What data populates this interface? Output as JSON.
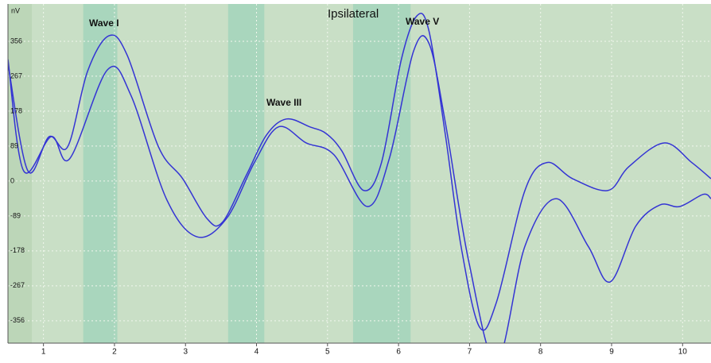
{
  "chart_data": {
    "type": "line",
    "title": "Ipsilateral",
    "y_label": "nV",
    "annotations": [
      "Wave I",
      "Wave III",
      "Wave V"
    ],
    "bands": [
      [
        1.56,
        2.04
      ],
      [
        3.6,
        4.11
      ],
      [
        5.36,
        6.17
      ]
    ],
    "xlim": [
      0.5,
      10.4
    ],
    "xticks": [
      1,
      2,
      3,
      4,
      5,
      6,
      7,
      8,
      9,
      10
    ],
    "ylim": [
      -413,
      451
    ],
    "yticks": [
      356,
      267,
      178,
      89,
      0,
      -89,
      -178,
      -267,
      -356
    ],
    "grid": true,
    "series": [
      {
        "color": "#3434d4",
        "x": [
          0.5,
          0.78,
          1.08,
          1.34,
          1.62,
          1.92,
          2.18,
          2.62,
          2.96,
          3.3,
          3.52,
          3.86,
          4.14,
          4.42,
          4.75,
          4.98,
          5.2,
          5.51,
          5.76,
          6.04,
          6.26,
          6.43,
          6.66,
          6.88,
          7.14,
          7.38,
          7.78,
          8.09,
          8.45,
          8.95,
          9.24,
          9.74,
          10.13,
          10.4
        ],
        "values": [
          300,
          26,
          113,
          87,
          279,
          370,
          320,
          87,
          6,
          -95,
          -105,
          16,
          117,
          158,
          138,
          121,
          77,
          -24,
          47,
          310,
          421,
          381,
          117,
          -166,
          -372,
          -308,
          -24,
          47,
          6,
          -24,
          36,
          97,
          47,
          6
        ]
      },
      {
        "color": "#3434d4",
        "x": [
          0.5,
          0.72,
          1.11,
          1.37,
          1.9,
          2.23,
          2.73,
          3.16,
          3.58,
          3.97,
          4.31,
          4.7,
          5.09,
          5.56,
          5.87,
          6.21,
          6.43,
          6.66,
          6.99,
          7.38,
          7.78,
          8.22,
          8.67,
          8.98,
          9.34,
          9.68,
          9.96,
          10.29,
          10.4
        ],
        "values": [
          310,
          26,
          113,
          57,
          283,
          219,
          -45,
          -142,
          -95,
          47,
          138,
          97,
          67,
          -65,
          57,
          330,
          350,
          148,
          -206,
          -460,
          -166,
          -45,
          -166,
          -257,
          -115,
          -61,
          -65,
          -34,
          -45
        ]
      }
    ]
  }
}
